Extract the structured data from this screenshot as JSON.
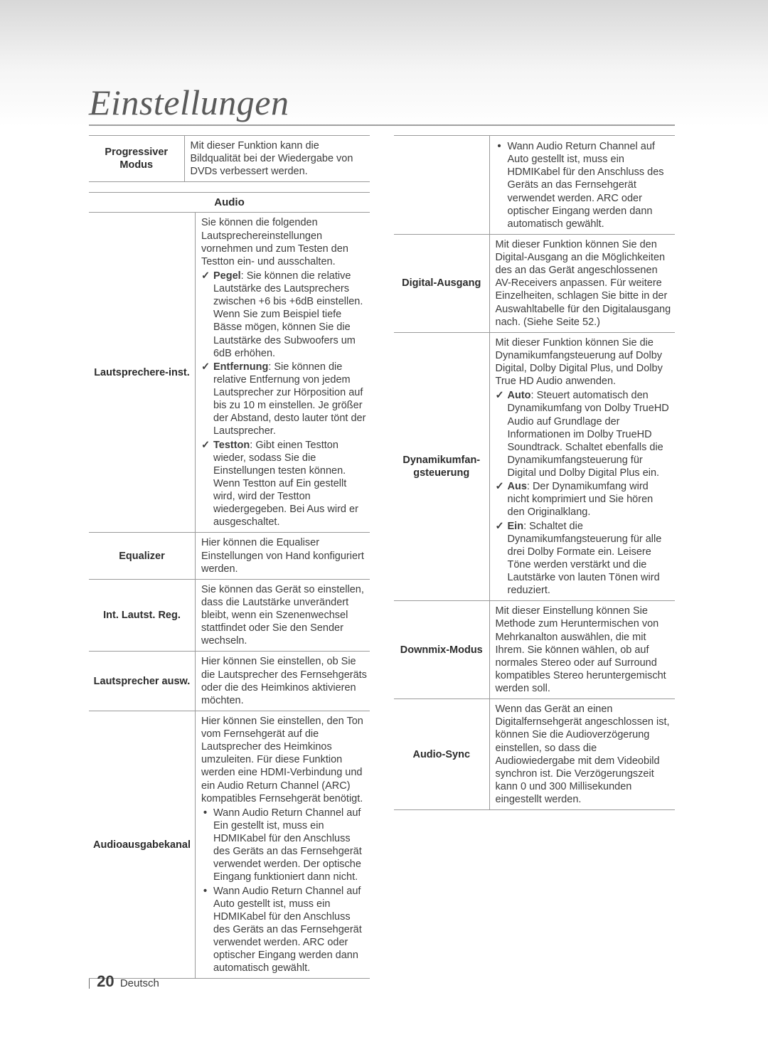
{
  "page": {
    "title": "Einstellungen",
    "number": "20",
    "language": "Deutsch"
  },
  "left": {
    "row1": {
      "label": "Progressiver Modus",
      "desc": "Mit dieser Funktion kann die Bildqualität bei der Wiedergabe von DVDs verbessert werden."
    },
    "section": "Audio",
    "lautsprecher": {
      "label": "Lautsprechere-inst.",
      "intro": "Sie können die folgenden Lautsprechereinstellungen vornehmen und zum Testen den Testton ein- und ausschalten.",
      "pegel_b": "Pegel",
      "pegel": ": Sie können die relative Lautstärke des Lautsprechers zwischen +6 bis +6dB einstellen. Wenn Sie zum Beispiel tiefe Bässe mögen, können Sie die Lautstärke des Subwoofers um 6dB erhöhen.",
      "entfernung_b": "Entfernung",
      "entfernung": ": Sie können die relative Entfernung von jedem Lautsprecher zur Hörposition auf bis zu 10 m einstellen. Je größer der Abstand, desto lauter tönt der Lautsprecher.",
      "testton_b": "Testton",
      "testton": ": Gibt einen Testton wieder, sodass Sie die Einstellungen testen können. Wenn Testton auf Ein gestellt wird, wird der Testton wiedergegeben. Bei Aus wird er ausgeschaltet."
    },
    "equalizer": {
      "label": "Equalizer",
      "desc": "Hier können die Equaliser Einstellungen von Hand konfiguriert werden."
    },
    "intlautst": {
      "label": "Int. Lautst. Reg.",
      "desc": "Sie können das Gerät so einstellen, dass die Lautstärke unverändert bleibt, wenn ein Szenenwechsel stattfindet oder Sie den Sender wechseln."
    },
    "lautspr_ausw": {
      "label": "Lautsprecher ausw.",
      "desc": "Hier können Sie einstellen, ob Sie die Lautsprecher des Fernsehgeräts oder die des Heimkinos aktivieren möchten."
    },
    "audioausgabe": {
      "label": "Audioausgabekanal",
      "intro": "Hier können Sie einstellen, den Ton vom Fernsehgerät auf die Lautsprecher des Heimkinos umzuleiten. Für diese Funktion werden eine HDMI-Verbindung und ein Audio Return Channel (ARC) kompatibles Fernsehgerät benötigt.",
      "b1": "Wann Audio Return Channel auf Ein gestellt ist, muss ein HDMIKabel für den Anschluss des Geräts an das Fernsehgerät verwendet werden. Der optische Eingang funktioniert dann nicht.",
      "b2": "Wann Audio Return Channel auf Auto gestellt ist, muss ein HDMIKabel für den Anschluss des Geräts an das Fernsehgerät verwendet werden. ARC oder optischer Eingang werden dann automatisch gewählt."
    }
  },
  "right": {
    "carryover": {
      "desc": "Wann Audio Return Channel auf Auto gestellt ist, muss ein HDMIKabel für den Anschluss des Geräts an das Fernsehgerät verwendet werden. ARC oder optischer Eingang werden dann automatisch gewählt."
    },
    "digital": {
      "label": "Digital-Ausgang",
      "desc": "Mit dieser Funktion können Sie den Digital-Ausgang an die Möglichkeiten des an das Gerät angeschlossenen AV-Receivers anpassen. Für weitere Einzelheiten, schlagen Sie bitte in der Auswahltabelle für den Digitalausgang nach. (Siehe Seite 52.)"
    },
    "dynamik": {
      "label": "Dynamikumfan-gsteuerung",
      "intro": "Mit dieser Funktion können Sie die Dynamikumfangsteuerung auf Dolby Digital, Dolby Digital Plus, und Dolby True HD Audio anwenden.",
      "auto_b": "Auto",
      "auto": ": Steuert automatisch den Dynamikumfang von Dolby TrueHD Audio auf Grundlage der Informationen im Dolby TrueHD Soundtrack. Schaltet ebenfalls die Dynamikumfangsteuerung für Digital und Dolby Digital Plus ein.",
      "aus_b": "Aus",
      "aus": ": Der Dynamikumfang wird nicht komprimiert und Sie hören den Originalklang.",
      "ein_b": "Ein",
      "ein": ": Schaltet die Dynamikumfangsteuerung für alle drei Dolby Formate ein. Leisere Töne werden verstärkt und die Lautstärke von lauten Tönen wird reduziert."
    },
    "downmix": {
      "label": "Downmix-Modus",
      "desc": "Mit dieser Einstellung können Sie Methode zum Heruntermischen von Mehrkanalton auswählen, die mit Ihrem. Sie können wählen, ob auf normales Stereo oder auf Surround kompatibles Stereo heruntergemischt werden soll."
    },
    "audiosync": {
      "label": "Audio-Sync",
      "desc": "Wenn das Gerät an einen Digitalfernsehgerät angeschlossen ist, können Sie die Audioverzögerung einstellen, so dass die Audiowiedergabe mit dem Videobild synchron ist. Die Verzögerungszeit kann 0 und 300 Millisekunden eingestellt werden."
    }
  }
}
